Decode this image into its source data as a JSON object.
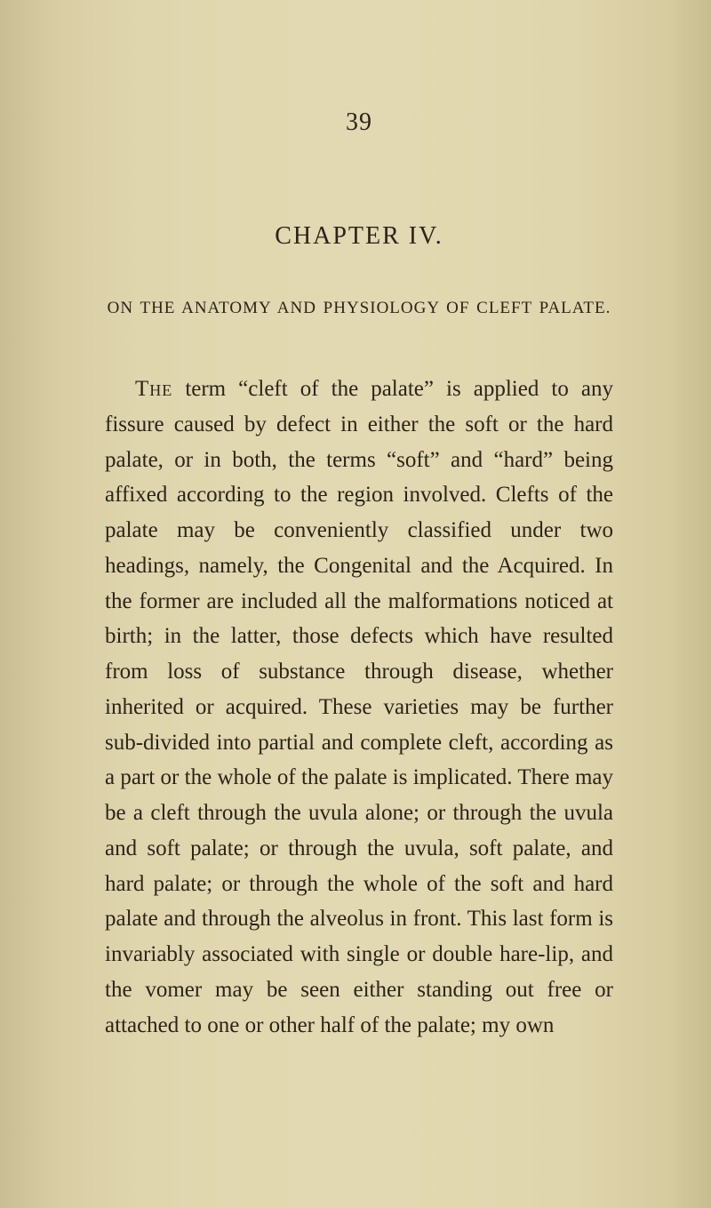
{
  "page_number": "39",
  "chapter_title": "CHAPTER IV.",
  "subtitle": "ON THE ANATOMY AND PHYSIOLOGY OF CLEFT PALATE.",
  "lead_word": "The",
  "body": " term “cleft of the palate” is applied to any fissure caused by defect in either the soft or the hard palate, or in both, the terms “soft” and “hard” being affixed according to the region in­volved. Clefts of the palate may be conveniently classified under two headings, namely, the Con­genital and the Acquired. In the former are included all the malformations noticed at birth; in the latter, those defects which have resulted from loss of substance through disease, whether inherited or acquired. These varieties may be further sub-divided into partial and complete cleft, according as a part or the whole of the palate is implicated. There may be a cleft through the uvula alone; or through the uvula and soft palate; or through the uvula, soft palate, and hard palate; or through the whole of the soft and hard palate and through the alveolus in front. This last form is invariably associated with single or double hare-lip, and the vomer may be seen either standing out free or attached to one or other half of the palate; my own"
}
